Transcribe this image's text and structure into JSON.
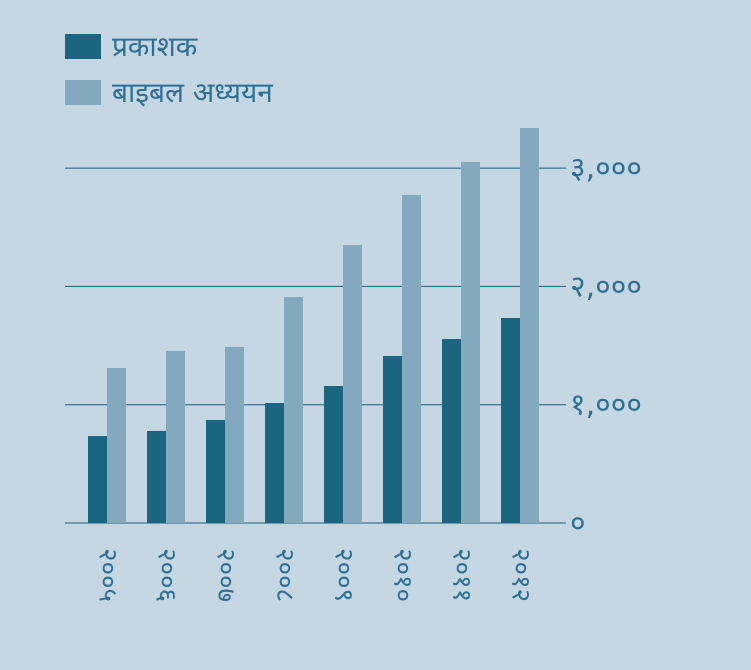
{
  "chart_data": {
    "type": "bar",
    "categories": [
      "२००५",
      "२००६",
      "२००७",
      "२००८",
      "२००९",
      "२०१०",
      "२०११",
      "२०१२"
    ],
    "series": [
      {
        "name": "प्रकाशक",
        "color": "#1a6680",
        "values": [
          735,
          778,
          871,
          1014,
          1158,
          1412,
          1555,
          1733
        ]
      },
      {
        "name": "बाइबल अध्ययन",
        "color": "#82a9be",
        "values": [
          1310,
          1454,
          1488,
          1910,
          2350,
          2773,
          3052,
          3339
        ]
      }
    ],
    "y_ticks": [
      0,
      1000,
      2000,
      3000
    ],
    "y_tick_labels": [
      "०",
      "१,०००",
      "२,०००",
      "३,०००"
    ],
    "ylim": [
      0,
      3400
    ],
    "y_axis_side": "right",
    "grid": true,
    "legend_position": "top-left",
    "title": "",
    "xlabel": "",
    "ylabel": ""
  }
}
